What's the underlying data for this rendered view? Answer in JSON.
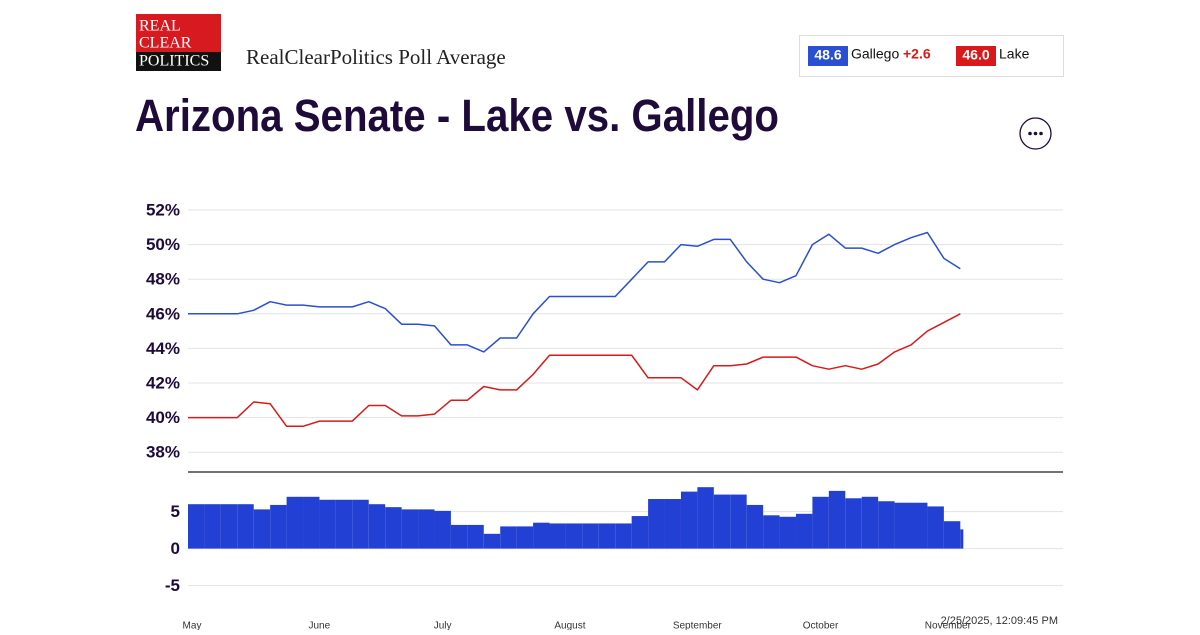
{
  "header": {
    "logo": [
      "REAL",
      "CLEAR",
      "POLITICS"
    ],
    "subtitle": "RealClearPolitics Poll Average",
    "legend": [
      {
        "value": "48.6",
        "name": "Gallego",
        "spread": "+2.6"
      },
      {
        "value": "46.0",
        "name": "Lake"
      }
    ],
    "timestamp": "2/25/2025, 12:09:45 PM"
  },
  "chart_data": [
    {
      "type": "line",
      "title": "Arizona Senate - Lake vs. Gallego",
      "x": [
        0,
        4,
        8,
        12,
        16,
        20,
        24,
        28,
        32,
        36,
        40,
        44,
        48,
        52,
        56,
        60,
        64,
        68,
        72,
        76,
        80,
        84,
        88,
        92,
        96,
        100,
        104,
        108,
        112,
        116,
        120,
        124,
        128,
        132,
        136,
        140,
        144,
        148,
        152,
        156,
        160,
        164,
        168,
        172,
        176,
        180,
        184,
        188
      ],
      "xlim": [
        0,
        213
      ],
      "series": [
        {
          "name": "Gallego",
          "color": "#2a4fd0",
          "values": [
            46.0,
            46.0,
            46.0,
            46.0,
            46.2,
            46.7,
            46.5,
            46.5,
            46.4,
            46.4,
            46.4,
            46.7,
            46.3,
            45.4,
            45.4,
            45.3,
            44.2,
            44.2,
            43.8,
            44.6,
            44.6,
            46.0,
            47.0,
            47.0,
            47.0,
            47.0,
            47.0,
            48.0,
            49.0,
            49.0,
            50.0,
            49.9,
            50.3,
            50.3,
            49.0,
            48.0,
            47.8,
            48.2,
            50.0,
            50.6,
            49.8,
            49.8,
            49.5,
            50.0,
            50.4,
            50.7,
            49.2,
            48.6
          ]
        },
        {
          "name": "Lake",
          "color": "#d81a1a",
          "values": [
            40.0,
            40.0,
            40.0,
            40.0,
            40.9,
            40.8,
            39.5,
            39.5,
            39.8,
            39.8,
            39.8,
            40.7,
            40.7,
            40.1,
            40.1,
            40.2,
            41.0,
            41.0,
            41.8,
            41.6,
            41.6,
            42.5,
            43.6,
            43.6,
            43.6,
            43.6,
            43.6,
            43.6,
            42.3,
            42.3,
            42.3,
            41.6,
            43.0,
            43.0,
            43.1,
            43.5,
            43.5,
            43.5,
            43.0,
            42.8,
            43.0,
            42.8,
            43.1,
            43.8,
            44.2,
            45.0,
            45.5,
            46.0
          ]
        }
      ],
      "ylim": [
        37,
        53
      ],
      "yticks": [
        {
          "value": 38,
          "label": "38%"
        },
        {
          "value": 40,
          "label": "40%"
        },
        {
          "value": 42,
          "label": "42%"
        },
        {
          "value": 44,
          "label": "44%"
        },
        {
          "value": 46,
          "label": "46%"
        },
        {
          "value": 48,
          "label": "48%"
        },
        {
          "value": 50,
          "label": "50%"
        },
        {
          "value": 52,
          "label": "52%"
        }
      ],
      "grid": true
    },
    {
      "type": "bar",
      "color": "#2340d4",
      "x": [
        0,
        4,
        8,
        12,
        16,
        20,
        24,
        28,
        32,
        36,
        40,
        44,
        48,
        52,
        56,
        60,
        64,
        68,
        72,
        76,
        80,
        84,
        88,
        92,
        96,
        100,
        104,
        108,
        112,
        116,
        120,
        124,
        128,
        132,
        136,
        140,
        144,
        148,
        152,
        156,
        160,
        164,
        168,
        172,
        176,
        180,
        184,
        188
      ],
      "xlim": [
        0,
        213
      ],
      "values": [
        6.0,
        6.0,
        6.0,
        6.0,
        5.3,
        5.9,
        7.0,
        7.0,
        6.6,
        6.6,
        6.6,
        6.0,
        5.6,
        5.3,
        5.3,
        5.1,
        3.2,
        3.2,
        2.0,
        3.0,
        3.0,
        3.5,
        3.4,
        3.4,
        3.4,
        3.4,
        3.4,
        4.4,
        6.7,
        6.7,
        7.7,
        8.3,
        7.3,
        7.3,
        5.9,
        4.5,
        4.3,
        4.7,
        7.0,
        7.8,
        6.8,
        7.0,
        6.4,
        6.2,
        6.2,
        5.7,
        3.7,
        2.6
      ],
      "ylim": [
        -6,
        9
      ],
      "yticks": [
        -5,
        0,
        5
      ],
      "grid": true,
      "xticks": [
        {
          "value": 0,
          "label": "May"
        },
        {
          "value": 31,
          "label": "June"
        },
        {
          "value": 61,
          "label": "July"
        },
        {
          "value": 92,
          "label": "August"
        },
        {
          "value": 123,
          "label": "September"
        },
        {
          "value": 153,
          "label": "October"
        },
        {
          "value": 184,
          "label": "November"
        }
      ]
    }
  ]
}
